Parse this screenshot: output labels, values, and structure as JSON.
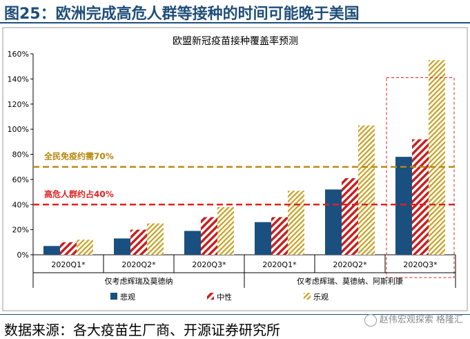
{
  "figure_title": "图25：欧洲完成高危人群等接种的时间可能晚于美国",
  "source": "数据来源：各大疫苗生厂商、开源证券研究所",
  "watermark": {
    "text": "赵伟宏观探索",
    "logo_text": "格隆汇"
  },
  "colors": {
    "pessimistic": "#1a5080",
    "neutral": "#c81e1e",
    "optimistic": "#c8a020",
    "herd_line": "#b8860b",
    "high_risk_line": "#e02020",
    "highlight_box": "#e02020"
  },
  "chart_data": {
    "type": "bar",
    "title": "欧盟新冠疫苗接种覆盖率预测",
    "categories": [
      "2020Q1*",
      "2020Q2*",
      "2020Q3*",
      "2020Q1*",
      "2020Q2*",
      "2020Q3*"
    ],
    "groups": [
      {
        "label": "仅考虑辉瑞及莫德纳",
        "categories": [
          "2020Q1*",
          "2020Q2*",
          "2020Q3*"
        ]
      },
      {
        "label": "仅考虑辉瑞、莫德纳、阿斯利康",
        "categories": [
          "2020Q1*",
          "2020Q2*",
          "2020Q3*"
        ]
      }
    ],
    "series": [
      {
        "name": "悲观",
        "values": [
          7,
          13,
          19,
          26,
          52,
          78
        ]
      },
      {
        "name": "中性",
        "values": [
          10,
          20,
          30,
          30,
          61,
          92
        ]
      },
      {
        "name": "乐观",
        "values": [
          12,
          25,
          38,
          51,
          103,
          155
        ]
      }
    ],
    "ylim": [
      0,
      160
    ],
    "yticks": [
      0,
      20,
      40,
      60,
      80,
      100,
      120,
      140,
      160
    ],
    "ytick_format": "percent",
    "reference_lines": [
      {
        "label": "全民免疫约需70%",
        "value": 70
      },
      {
        "label": "高危人群约占40%",
        "value": 40
      }
    ],
    "highlight": "2020Q3*",
    "legend": "bottom"
  }
}
